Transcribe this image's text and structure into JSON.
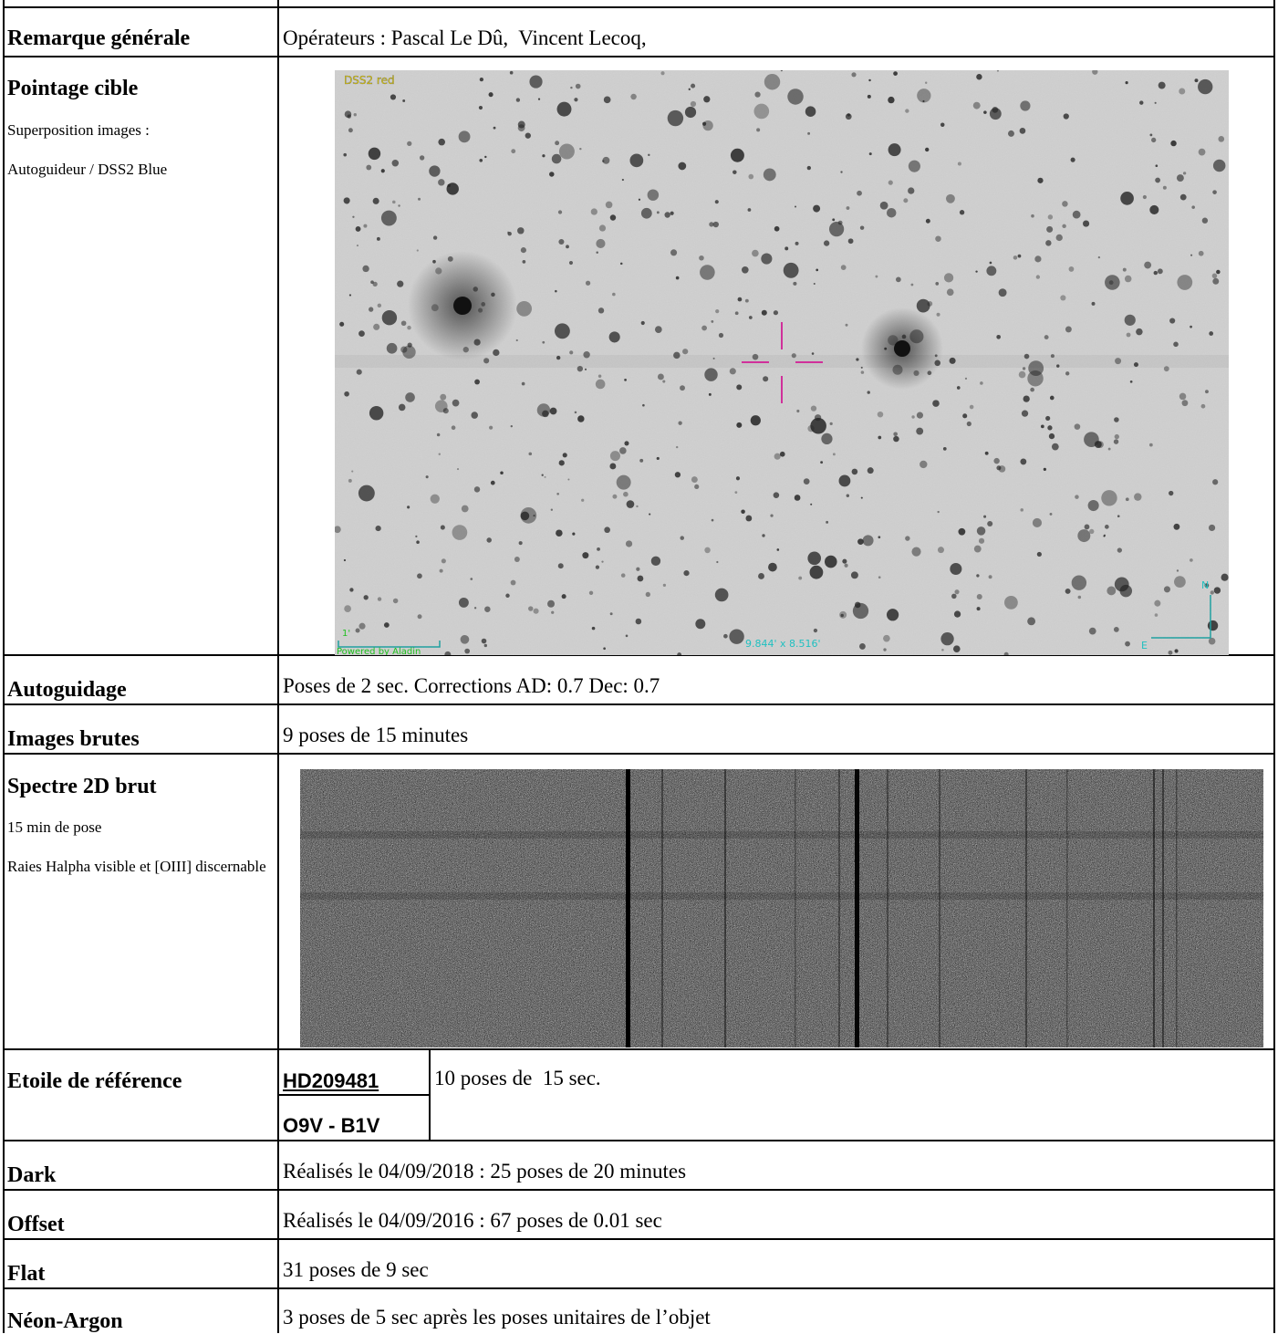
{
  "rows": [
    {
      "label": "Remarque générale",
      "value": "Opérateurs : Pascal Le Dû,  Vincent Lecoq,"
    },
    {
      "label": "Pointage cible",
      "notes": [
        "Superposition images :",
        "Autoguideur / DSS2 Blue"
      ],
      "image_labels": {
        "survey": "DSS2 red",
        "field": "9.844' x 8.516'",
        "scale": "1'",
        "credit": "Powered by Aladin",
        "north": "N",
        "east": "E"
      }
    },
    {
      "label": "Autoguidage",
      "value": "Poses de 2 sec. Corrections AD: 0.7 Dec: 0.7"
    },
    {
      "label": "Images brutes",
      "value": "9 poses de 15 minutes"
    },
    {
      "label": "Spectre 2D brut",
      "notes": [
        "15 min de pose",
        "Raies Halpha visible et [OIII] discernable"
      ]
    },
    {
      "label": "Etoile de référence",
      "star": "HD209481",
      "spectral_type": "O9V - B1V",
      "value": "10 poses de  15 sec."
    },
    {
      "label": "Dark",
      "value": "Réalisés le 04/09/2018 : 25 poses de 20 minutes"
    },
    {
      "label": "Offset",
      "value": "Réalisés le 04/09/2016 : 67 poses de 0.01 sec"
    },
    {
      "label": "Flat",
      "value": "31 poses de 9 sec"
    },
    {
      "label": "Néon-Argon",
      "value": "3 poses de 5 sec après les poses unitaires de l’objet"
    }
  ]
}
